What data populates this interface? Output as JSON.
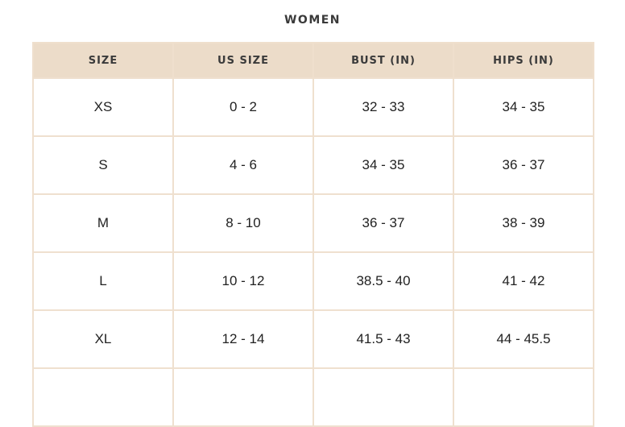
{
  "title": "WOMEN",
  "headers": [
    "SIZE",
    "US SIZE",
    "BUST (IN)",
    "HIPS (IN)"
  ],
  "rows": [
    [
      "XS",
      "0 - 2",
      "32 - 33",
      "34 - 35"
    ],
    [
      "S",
      "4 - 6",
      "34 - 35",
      "36 - 37"
    ],
    [
      "M",
      "8 - 10",
      "36 - 37",
      "38 - 39"
    ],
    [
      "L",
      "10 - 12",
      "38.5 - 40",
      "41 - 42"
    ],
    [
      "XL",
      "12 - 14",
      "41.5 - 43",
      "44 - 45.5"
    ]
  ],
  "colors": {
    "header_bg": "#ecdcc9",
    "border": "#efe0cf"
  }
}
